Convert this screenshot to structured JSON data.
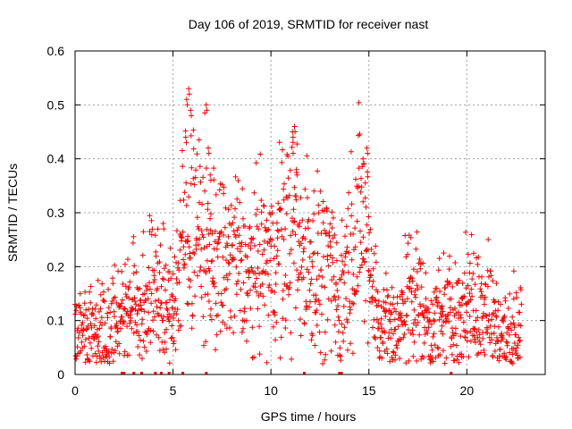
{
  "chart_data": {
    "type": "scatter",
    "title": "Day 106 of 2019, SRMTID for receiver nast",
    "xlabel": "GPS time / hours",
    "ylabel": "SRMTID / TECUs",
    "xlim": [
      0,
      24
    ],
    "ylim": [
      0,
      0.6
    ],
    "xticks": [
      0,
      5,
      10,
      15,
      20
    ],
    "xtick_labels": [
      "0",
      "5",
      "10",
      "15",
      "20"
    ],
    "yticks": [
      0,
      0.1,
      0.2,
      0.3,
      0.4,
      0.5,
      0.6
    ],
    "ytick_labels": [
      "0",
      "0.1",
      "0.2",
      "0.3",
      "0.4",
      "0.5",
      "0.6"
    ],
    "grid": true,
    "marker": "plus",
    "color": "#ff0000",
    "series": [
      {
        "name": "SRMTID",
        "envelope_x": [
          0,
          0.5,
          1,
          1.5,
          2,
          2.5,
          3,
          3.5,
          4,
          4.2,
          4.5,
          5,
          5.5,
          5.8,
          6.2,
          7,
          7.5,
          8,
          8.5,
          9,
          9.5,
          10,
          10.5,
          11,
          11.5,
          12,
          12.5,
          13,
          13.5,
          14,
          14.5,
          15,
          15.5,
          16,
          16.5,
          17,
          17.5,
          18,
          18.5,
          19,
          19.5,
          20,
          20.5,
          21,
          21.5,
          22,
          22.5,
          22.8
        ],
        "envelope_median": [
          0.08,
          0.085,
          0.09,
          0.095,
          0.1,
          0.12,
          0.13,
          0.14,
          0.17,
          0.19,
          0.1,
          0.13,
          0.23,
          0.3,
          0.26,
          0.22,
          0.2,
          0.22,
          0.2,
          0.18,
          0.22,
          0.19,
          0.24,
          0.26,
          0.23,
          0.22,
          0.2,
          0.19,
          0.12,
          0.22,
          0.28,
          0.22,
          0.1,
          0.09,
          0.08,
          0.16,
          0.14,
          0.1,
          0.1,
          0.12,
          0.1,
          0.13,
          0.12,
          0.14,
          0.08,
          0.07,
          0.09,
          0.11
        ],
        "peaks": [
          {
            "x": 5.8,
            "y": 0.53
          },
          {
            "x": 5.7,
            "y": 0.51
          },
          {
            "x": 6.7,
            "y": 0.5
          },
          {
            "x": 5.9,
            "y": 0.49
          },
          {
            "x": 11.2,
            "y": 0.46
          },
          {
            "x": 5.65,
            "y": 0.44
          },
          {
            "x": 11.1,
            "y": 0.45
          },
          {
            "x": 6.8,
            "y": 0.42
          },
          {
            "x": 14.9,
            "y": 0.42
          },
          {
            "x": 14.7,
            "y": 0.4
          },
          {
            "x": 4.5,
            "y": 0.28
          },
          {
            "x": 11.3,
            "y": 0.38
          },
          {
            "x": 6.9,
            "y": 0.37
          }
        ],
        "zeros_x": [
          2.4,
          2.5,
          3.0,
          3.4,
          4.1,
          4.4,
          4.8,
          5.5,
          6.7,
          11.7,
          13.5,
          13.6,
          19.2
        ]
      }
    ]
  }
}
